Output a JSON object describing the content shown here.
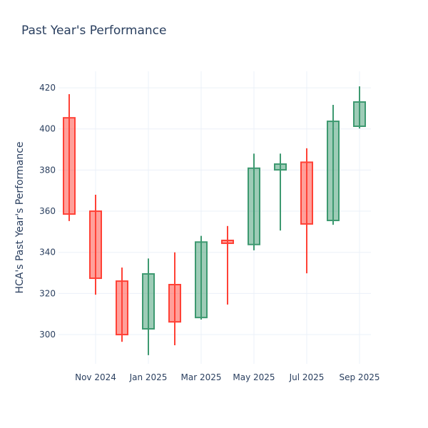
{
  "chart_data": {
    "type": "candlestick",
    "title": "Past Year's Performance",
    "xlabel": "",
    "ylabel": "HCA's Past Year's Performance",
    "ylim": [
      285.8,
      428
    ],
    "yticks": [
      300,
      320,
      340,
      360,
      380,
      400,
      420
    ],
    "xticks": [
      {
        "label": "Nov 2024",
        "month_index": 1
      },
      {
        "label": "Jan 2025",
        "month_index": 3
      },
      {
        "label": "Mar 2025",
        "month_index": 5
      },
      {
        "label": "May 2025",
        "month_index": 7
      },
      {
        "label": "Jul 2025",
        "month_index": 9
      },
      {
        "label": "Sep 2025",
        "month_index": 11
      }
    ],
    "grid": true,
    "increasing_color": "#3d9970",
    "decreasing_color": "#ff4136",
    "candles": [
      {
        "month": "Oct 2024",
        "open": 405.4,
        "high": 416.9,
        "low": 355.2,
        "close": 358.6
      },
      {
        "month": "Nov 2024",
        "open": 360.0,
        "high": 368.0,
        "low": 319.4,
        "close": 327.4
      },
      {
        "month": "Dec 2024",
        "open": 326.0,
        "high": 332.6,
        "low": 296.5,
        "close": 300.0
      },
      {
        "month": "Jan 2025",
        "open": 302.8,
        "high": 337.0,
        "low": 290.0,
        "close": 329.5
      },
      {
        "month": "Feb 2025",
        "open": 324.3,
        "high": 340.0,
        "low": 294.8,
        "close": 306.2
      },
      {
        "month": "Mar 2025",
        "open": 308.3,
        "high": 348.0,
        "low": 307.3,
        "close": 345.0
      },
      {
        "month": "Apr 2025",
        "open": 345.8,
        "high": 352.8,
        "low": 314.6,
        "close": 344.4
      },
      {
        "month": "May 2025",
        "open": 343.8,
        "high": 388.0,
        "low": 341.0,
        "close": 380.9
      },
      {
        "month": "Jun 2025",
        "open": 380.1,
        "high": 388.0,
        "low": 350.6,
        "close": 382.9
      },
      {
        "month": "Jul 2025",
        "open": 383.8,
        "high": 390.6,
        "low": 329.8,
        "close": 353.8
      },
      {
        "month": "Aug 2025",
        "open": 355.5,
        "high": 411.7,
        "low": 353.4,
        "close": 403.7
      },
      {
        "month": "Sep 2025",
        "open": 401.3,
        "high": 420.7,
        "low": 400.2,
        "close": 413.1
      }
    ]
  }
}
